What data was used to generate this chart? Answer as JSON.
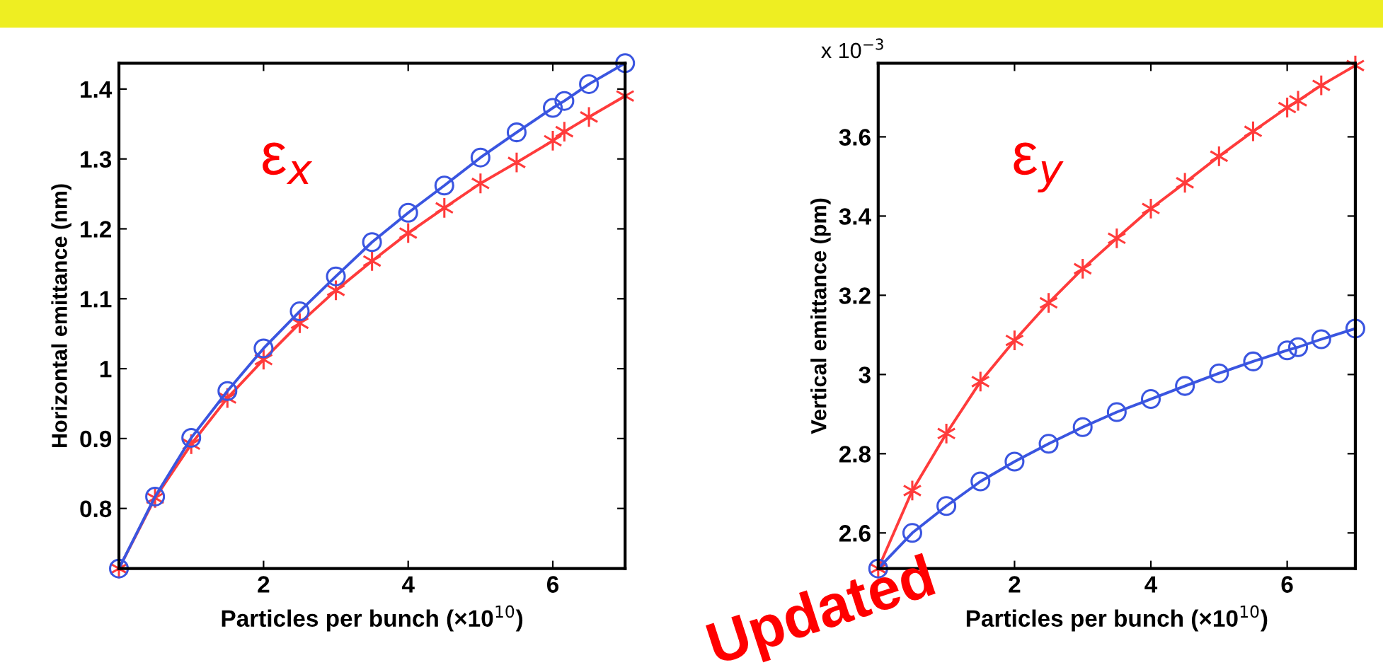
{
  "chart_data": [
    {
      "type": "line",
      "xlabel": "Particles per bunch (×10$^{10}$)",
      "ylabel": "Horizontal emittance (nm)",
      "xlim": [
        0,
        7
      ],
      "ylim": [
        0.714,
        1.437
      ],
      "xticks": [
        2,
        4,
        6
      ],
      "yticks": [
        0.8,
        0.9,
        1,
        1.1,
        1.2,
        1.3,
        1.4
      ],
      "x": [
        0,
        0.5,
        1,
        1.5,
        2,
        2.5,
        3,
        3.5,
        4,
        4.5,
        5,
        5.5,
        6,
        6.16,
        6.5,
        7
      ],
      "series": [
        {
          "color": "#ff3b3b",
          "marker": "cross",
          "values": [
            0.714,
            0.815,
            0.892,
            0.958,
            1.013,
            1.065,
            1.112,
            1.154,
            1.194,
            1.23,
            1.265,
            1.295,
            1.326,
            1.339,
            1.36,
            1.39
          ]
        },
        {
          "color": "#3a55e0",
          "marker": "circle",
          "values": [
            0.714,
            0.817,
            0.901,
            0.968,
            1.029,
            1.082,
            1.132,
            1.181,
            1.223,
            1.262,
            1.302,
            1.338,
            1.373,
            1.383,
            1.407,
            1.437
          ]
        }
      ],
      "annotations": [
        "ε$_{x}$"
      ]
    },
    {
      "type": "line",
      "xlabel": "Particles per bunch (×10$^{10}$)",
      "ylabel": "Vertical emittance (pm)",
      "xlim": [
        0,
        7
      ],
      "ylim": [
        2.51,
        3.786
      ],
      "xticks": [
        2,
        4,
        6
      ],
      "yticks": [
        2.6,
        2.8,
        3,
        3.2,
        3.4,
        3.6
      ],
      "x": [
        0,
        0.5,
        1,
        1.5,
        2,
        2.5,
        3,
        3.5,
        4,
        4.5,
        5,
        5.5,
        6,
        6.16,
        6.5,
        7
      ],
      "series": [
        {
          "color": "#ff3b3b",
          "marker": "cross",
          "values": [
            2.51,
            2.707,
            2.851,
            2.982,
            3.086,
            3.181,
            3.267,
            3.344,
            3.419,
            3.484,
            3.551,
            3.614,
            3.674,
            3.691,
            3.73,
            3.78
          ]
        },
        {
          "color": "#3a55e0",
          "marker": "circle",
          "values": [
            2.51,
            2.6,
            2.668,
            2.73,
            2.78,
            2.825,
            2.867,
            2.905,
            2.938,
            2.971,
            3.003,
            3.033,
            3.061,
            3.069,
            3.089,
            3.116
          ]
        }
      ],
      "annotations": [
        "ε$_{y}$",
        "x 10$^{−3}$",
        "Updated"
      ]
    }
  ]
}
